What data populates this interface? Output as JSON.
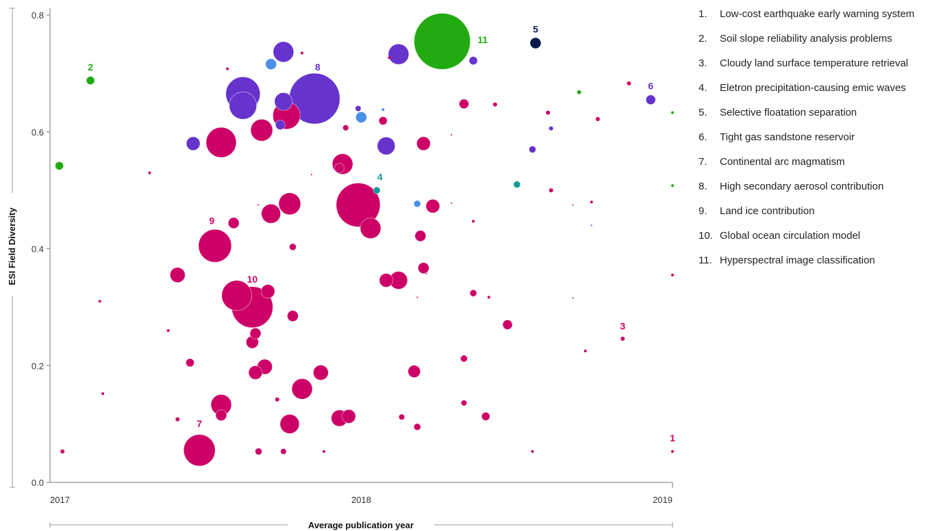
{
  "chart_data": {
    "type": "scatter",
    "xlabel": "Average publication year",
    "ylabel": "ESI Field Diversity",
    "xlim": [
      2017,
      2019
    ],
    "ylim": [
      0,
      0.8
    ],
    "x_ticks": [
      "2017",
      "2018",
      "2019"
    ],
    "y_ticks": [
      "0.0",
      "0.2",
      "0.4",
      "0.6",
      "0.8"
    ],
    "colors": {
      "magenta": "#cc0066",
      "purple": "#6633cc",
      "green": "#22aa11",
      "navy": "#0a1a4d",
      "teal": "#0d9a9a",
      "blue": "#4a90e8"
    },
    "labels": [
      {
        "text": "1",
        "x": 2019.0,
        "y": 0.07,
        "color": "#cc0066"
      },
      {
        "text": "2",
        "x": 2017.13,
        "y": 0.705,
        "color": "#22aa11"
      },
      {
        "text": "3",
        "x": 2018.84,
        "y": 0.262,
        "color": "#cc0066"
      },
      {
        "text": "4",
        "x": 2018.06,
        "y": 0.517,
        "color": "#0d9a9a"
      },
      {
        "text": "5",
        "x": 2018.56,
        "y": 0.77,
        "color": "#0a1a4d"
      },
      {
        "text": "6",
        "x": 2018.93,
        "y": 0.673,
        "color": "#6633cc"
      },
      {
        "text": "7",
        "x": 2017.48,
        "y": 0.095,
        "color": "#cc0066"
      },
      {
        "text": "8",
        "x": 2017.86,
        "y": 0.705,
        "color": "#6633cc"
      },
      {
        "text": "9",
        "x": 2017.52,
        "y": 0.442,
        "color": "#cc0066"
      },
      {
        "text": "10",
        "x": 2017.65,
        "y": 0.342,
        "color": "#cc0066"
      },
      {
        "text": "11",
        "x": 2018.39,
        "y": 0.752,
        "color": "#22aa11"
      }
    ],
    "points": [
      {
        "x": 2018.26,
        "y": 0.755,
        "r": 41,
        "color": "#22aa11"
      },
      {
        "x": 2017.85,
        "y": 0.657,
        "r": 37,
        "color": "#6633cc"
      },
      {
        "x": 2017.62,
        "y": 0.665,
        "r": 25,
        "color": "#6633cc"
      },
      {
        "x": 2017.62,
        "y": 0.645,
        "r": 20,
        "color": "#6633cc"
      },
      {
        "x": 2017.75,
        "y": 0.737,
        "r": 15,
        "color": "#6633cc"
      },
      {
        "x": 2017.75,
        "y": 0.652,
        "r": 13,
        "color": "#6633cc"
      },
      {
        "x": 2018.12,
        "y": 0.733,
        "r": 15,
        "color": "#6633cc"
      },
      {
        "x": 2018.08,
        "y": 0.576,
        "r": 13,
        "color": "#6633cc"
      },
      {
        "x": 2017.46,
        "y": 0.58,
        "r": 10,
        "color": "#6633cc"
      },
      {
        "x": 2017.74,
        "y": 0.612,
        "r": 7,
        "color": "#6633cc"
      },
      {
        "x": 2018.36,
        "y": 0.722,
        "r": 6,
        "color": "#6633cc"
      },
      {
        "x": 2018.93,
        "y": 0.655,
        "r": 7,
        "color": "#6633cc"
      },
      {
        "x": 2018.55,
        "y": 0.57,
        "r": 5,
        "color": "#6633cc"
      },
      {
        "x": 2018.61,
        "y": 0.606,
        "r": 3,
        "color": "#6633cc"
      },
      {
        "x": 2017.99,
        "y": 0.64,
        "r": 4,
        "color": "#6633cc"
      },
      {
        "x": 2018.56,
        "y": 0.752,
        "r": 8,
        "color": "#0a1a4d"
      },
      {
        "x": 2017.71,
        "y": 0.716,
        "r": 8,
        "color": "#4a90e8"
      },
      {
        "x": 2018.0,
        "y": 0.625,
        "r": 8,
        "color": "#4a90e8"
      },
      {
        "x": 2018.18,
        "y": 0.477,
        "r": 5,
        "color": "#4a90e8"
      },
      {
        "x": 2018.07,
        "y": 0.638,
        "r": 2,
        "color": "#4a90e8"
      },
      {
        "x": 2018.05,
        "y": 0.5,
        "r": 5,
        "color": "#0d9a9a"
      },
      {
        "x": 2018.5,
        "y": 0.51,
        "r": 5,
        "color": "#0d9a9a"
      },
      {
        "x": 2017.03,
        "y": 0.542,
        "r": 6,
        "color": "#22aa11"
      },
      {
        "x": 2017.13,
        "y": 0.688,
        "r": 6,
        "color": "#22aa11"
      },
      {
        "x": 2018.7,
        "y": 0.668,
        "r": 3,
        "color": "#22aa11"
      },
      {
        "x": 2019.0,
        "y": 0.508,
        "r": 2,
        "color": "#22aa11"
      },
      {
        "x": 2019.0,
        "y": 0.633,
        "r": 2,
        "color": "#22aa11"
      },
      {
        "x": 2017.99,
        "y": 0.475,
        "r": 32,
        "color": "#cc0066"
      },
      {
        "x": 2017.65,
        "y": 0.3,
        "r": 30,
        "color": "#cc0066"
      },
      {
        "x": 2017.6,
        "y": 0.32,
        "r": 22,
        "color": "#cc0066"
      },
      {
        "x": 2017.53,
        "y": 0.405,
        "r": 24,
        "color": "#cc0066"
      },
      {
        "x": 2017.48,
        "y": 0.055,
        "r": 23,
        "color": "#cc0066"
      },
      {
        "x": 2017.55,
        "y": 0.582,
        "r": 22,
        "color": "#cc0066"
      },
      {
        "x": 2017.76,
        "y": 0.628,
        "r": 20,
        "color": "#cc0066"
      },
      {
        "x": 2017.77,
        "y": 0.477,
        "r": 16,
        "color": "#cc0066"
      },
      {
        "x": 2017.68,
        "y": 0.603,
        "r": 16,
        "color": "#cc0066"
      },
      {
        "x": 2017.94,
        "y": 0.545,
        "r": 15,
        "color": "#cc0066"
      },
      {
        "x": 2017.71,
        "y": 0.46,
        "r": 14,
        "color": "#cc0066"
      },
      {
        "x": 2018.03,
        "y": 0.435,
        "r": 15,
        "color": "#cc0066"
      },
      {
        "x": 2017.81,
        "y": 0.16,
        "r": 15,
        "color": "#cc0066"
      },
      {
        "x": 2017.55,
        "y": 0.133,
        "r": 15,
        "color": "#cc0066"
      },
      {
        "x": 2017.77,
        "y": 0.1,
        "r": 14,
        "color": "#cc0066"
      },
      {
        "x": 2018.12,
        "y": 0.346,
        "r": 13,
        "color": "#cc0066"
      },
      {
        "x": 2017.93,
        "y": 0.11,
        "r": 12,
        "color": "#cc0066"
      },
      {
        "x": 2017.87,
        "y": 0.188,
        "r": 11,
        "color": "#cc0066"
      },
      {
        "x": 2017.69,
        "y": 0.198,
        "r": 11,
        "color": "#cc0066"
      },
      {
        "x": 2017.7,
        "y": 0.327,
        "r": 10,
        "color": "#cc0066"
      },
      {
        "x": 2017.96,
        "y": 0.113,
        "r": 10,
        "color": "#cc0066"
      },
      {
        "x": 2018.08,
        "y": 0.346,
        "r": 10,
        "color": "#cc0066"
      },
      {
        "x": 2018.23,
        "y": 0.473,
        "r": 10,
        "color": "#cc0066"
      },
      {
        "x": 2018.2,
        "y": 0.58,
        "r": 10,
        "color": "#cc0066"
      },
      {
        "x": 2017.41,
        "y": 0.355,
        "r": 11,
        "color": "#cc0066"
      },
      {
        "x": 2017.66,
        "y": 0.188,
        "r": 10,
        "color": "#cc0066"
      },
      {
        "x": 2018.17,
        "y": 0.19,
        "r": 9,
        "color": "#cc0066"
      },
      {
        "x": 2017.65,
        "y": 0.24,
        "r": 9,
        "color": "#cc0066"
      },
      {
        "x": 2017.78,
        "y": 0.285,
        "r": 8,
        "color": "#cc0066"
      },
      {
        "x": 2017.66,
        "y": 0.255,
        "r": 8,
        "color": "#cc0066"
      },
      {
        "x": 2017.59,
        "y": 0.444,
        "r": 8,
        "color": "#cc0066"
      },
      {
        "x": 2017.55,
        "y": 0.115,
        "r": 8,
        "color": "#cc0066"
      },
      {
        "x": 2018.2,
        "y": 0.367,
        "r": 8,
        "color": "#cc0066"
      },
      {
        "x": 2018.19,
        "y": 0.422,
        "r": 8,
        "color": "#cc0066"
      },
      {
        "x": 2018.33,
        "y": 0.648,
        "r": 7,
        "color": "#cc0066"
      },
      {
        "x": 2018.47,
        "y": 0.27,
        "r": 7,
        "color": "#cc0066"
      },
      {
        "x": 2017.93,
        "y": 0.538,
        "r": 7,
        "color": "#cc0066"
      },
      {
        "x": 2018.07,
        "y": 0.619,
        "r": 6,
        "color": "#cc0066"
      },
      {
        "x": 2017.45,
        "y": 0.205,
        "r": 6,
        "color": "#cc0066"
      },
      {
        "x": 2017.78,
        "y": 0.403,
        "r": 5,
        "color": "#cc0066"
      },
      {
        "x": 2018.4,
        "y": 0.113,
        "r": 6,
        "color": "#cc0066"
      },
      {
        "x": 2018.33,
        "y": 0.212,
        "r": 5,
        "color": "#cc0066"
      },
      {
        "x": 2018.36,
        "y": 0.324,
        "r": 5,
        "color": "#cc0066"
      },
      {
        "x": 2018.18,
        "y": 0.095,
        "r": 5,
        "color": "#cc0066"
      },
      {
        "x": 2017.67,
        "y": 0.053,
        "r": 5,
        "color": "#cc0066"
      },
      {
        "x": 2017.75,
        "y": 0.053,
        "r": 4,
        "color": "#cc0066"
      },
      {
        "x": 2018.13,
        "y": 0.112,
        "r": 4,
        "color": "#cc0066"
      },
      {
        "x": 2017.95,
        "y": 0.607,
        "r": 4,
        "color": "#cc0066"
      },
      {
        "x": 2018.33,
        "y": 0.136,
        "r": 4,
        "color": "#cc0066"
      },
      {
        "x": 2018.43,
        "y": 0.647,
        "r": 3,
        "color": "#cc0066"
      },
      {
        "x": 2018.61,
        "y": 0.5,
        "r": 3,
        "color": "#cc0066"
      },
      {
        "x": 2018.6,
        "y": 0.633,
        "r": 3,
        "color": "#cc0066"
      },
      {
        "x": 2018.76,
        "y": 0.622,
        "r": 3,
        "color": "#cc0066"
      },
      {
        "x": 2018.86,
        "y": 0.683,
        "r": 3,
        "color": "#cc0066"
      },
      {
        "x": 2018.84,
        "y": 0.246,
        "r": 3,
        "color": "#cc0066"
      },
      {
        "x": 2017.73,
        "y": 0.142,
        "r": 3,
        "color": "#cc0066"
      },
      {
        "x": 2017.41,
        "y": 0.108,
        "r": 3,
        "color": "#cc0066"
      },
      {
        "x": 2017.04,
        "y": 0.053,
        "r": 3,
        "color": "#cc0066"
      },
      {
        "x": 2017.32,
        "y": 0.53,
        "r": 2,
        "color": "#cc0066"
      },
      {
        "x": 2017.57,
        "y": 0.708,
        "r": 2,
        "color": "#cc0066"
      },
      {
        "x": 2017.16,
        "y": 0.31,
        "r": 2,
        "color": "#cc0066"
      },
      {
        "x": 2017.17,
        "y": 0.152,
        "r": 2,
        "color": "#cc0066"
      },
      {
        "x": 2017.38,
        "y": 0.26,
        "r": 2,
        "color": "#cc0066"
      },
      {
        "x": 2018.36,
        "y": 0.447,
        "r": 2,
        "color": "#cc0066"
      },
      {
        "x": 2018.41,
        "y": 0.317,
        "r": 2,
        "color": "#cc0066"
      },
      {
        "x": 2018.55,
        "y": 0.053,
        "r": 2,
        "color": "#cc0066"
      },
      {
        "x": 2018.72,
        "y": 0.225,
        "r": 2,
        "color": "#cc0066"
      },
      {
        "x": 2018.74,
        "y": 0.48,
        "r": 2,
        "color": "#cc0066"
      },
      {
        "x": 2019.0,
        "y": 0.355,
        "r": 2,
        "color": "#cc0066"
      },
      {
        "x": 2019.0,
        "y": 0.053,
        "r": 2,
        "color": "#cc0066"
      },
      {
        "x": 2017.88,
        "y": 0.053,
        "r": 2,
        "color": "#cc0066"
      },
      {
        "x": 2017.81,
        "y": 0.735,
        "r": 2,
        "color": "#cc0066"
      },
      {
        "x": 2018.09,
        "y": 0.727,
        "r": 2,
        "color": "#cc0066"
      },
      {
        "x": 2018.29,
        "y": 0.595,
        "r": 1,
        "color": "#cc0066"
      },
      {
        "x": 2018.29,
        "y": 0.478,
        "r": 1,
        "color": "#cc0066"
      },
      {
        "x": 2017.84,
        "y": 0.527,
        "r": 1,
        "color": "#cc0066"
      },
      {
        "x": 2018.68,
        "y": 0.316,
        "r": 1,
        "color": "#cc0066"
      },
      {
        "x": 2018.68,
        "y": 0.475,
        "r": 1,
        "color": "#cc0066"
      },
      {
        "x": 2018.21,
        "y": 0.357,
        "r": 1,
        "color": "#cc0066"
      },
      {
        "x": 2018.18,
        "y": 0.317,
        "r": 1,
        "color": "#cc0066"
      },
      {
        "x": 2017.67,
        "y": 0.475,
        "r": 1,
        "color": "#cc0066"
      },
      {
        "x": 2018.74,
        "y": 0.44,
        "r": 1,
        "color": "#6633cc"
      }
    ]
  },
  "legend": {
    "items": [
      {
        "num": "1.",
        "text": "Low-cost earthquake early warning system"
      },
      {
        "num": "2.",
        "text": "Soil slope reliability analysis problems"
      },
      {
        "num": "3.",
        "text": "Cloudy land surface temperature retrieval"
      },
      {
        "num": "4.",
        "text": "Eletron precipitation-causing emic waves"
      },
      {
        "num": "5.",
        "text": "Selective floatation separation"
      },
      {
        "num": "6.",
        "text": "Tight gas sandstone reservoir"
      },
      {
        "num": "7.",
        "text": "Continental arc magmatism"
      },
      {
        "num": "8.",
        "text": "High secondary aerosol contribution"
      },
      {
        "num": "9.",
        "text": "Land ice contribution"
      },
      {
        "num": "10.",
        "text": "Global ocean circulation model"
      },
      {
        "num": "11.",
        "text": "Hyperspectral image classification"
      }
    ]
  }
}
